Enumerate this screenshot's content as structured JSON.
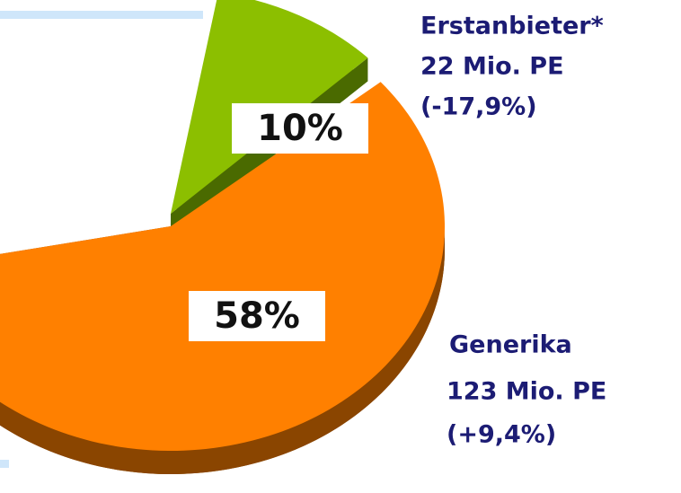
{
  "chart_data": {
    "type": "pie",
    "categories": [
      "Erstanbieter*",
      "Generika"
    ],
    "values": [
      10,
      58
    ],
    "value_labels": [
      "10%",
      "58%"
    ],
    "colors": [
      "#8cbf00",
      "#ff8000"
    ],
    "side_colors": [
      "#4a6a00",
      "#8a4500"
    ],
    "annotations": [
      [
        "22 Mio. PE",
        "(-17,9%)"
      ],
      [
        "123 Mio. PE",
        "(+9,4%)"
      ]
    ]
  }
}
